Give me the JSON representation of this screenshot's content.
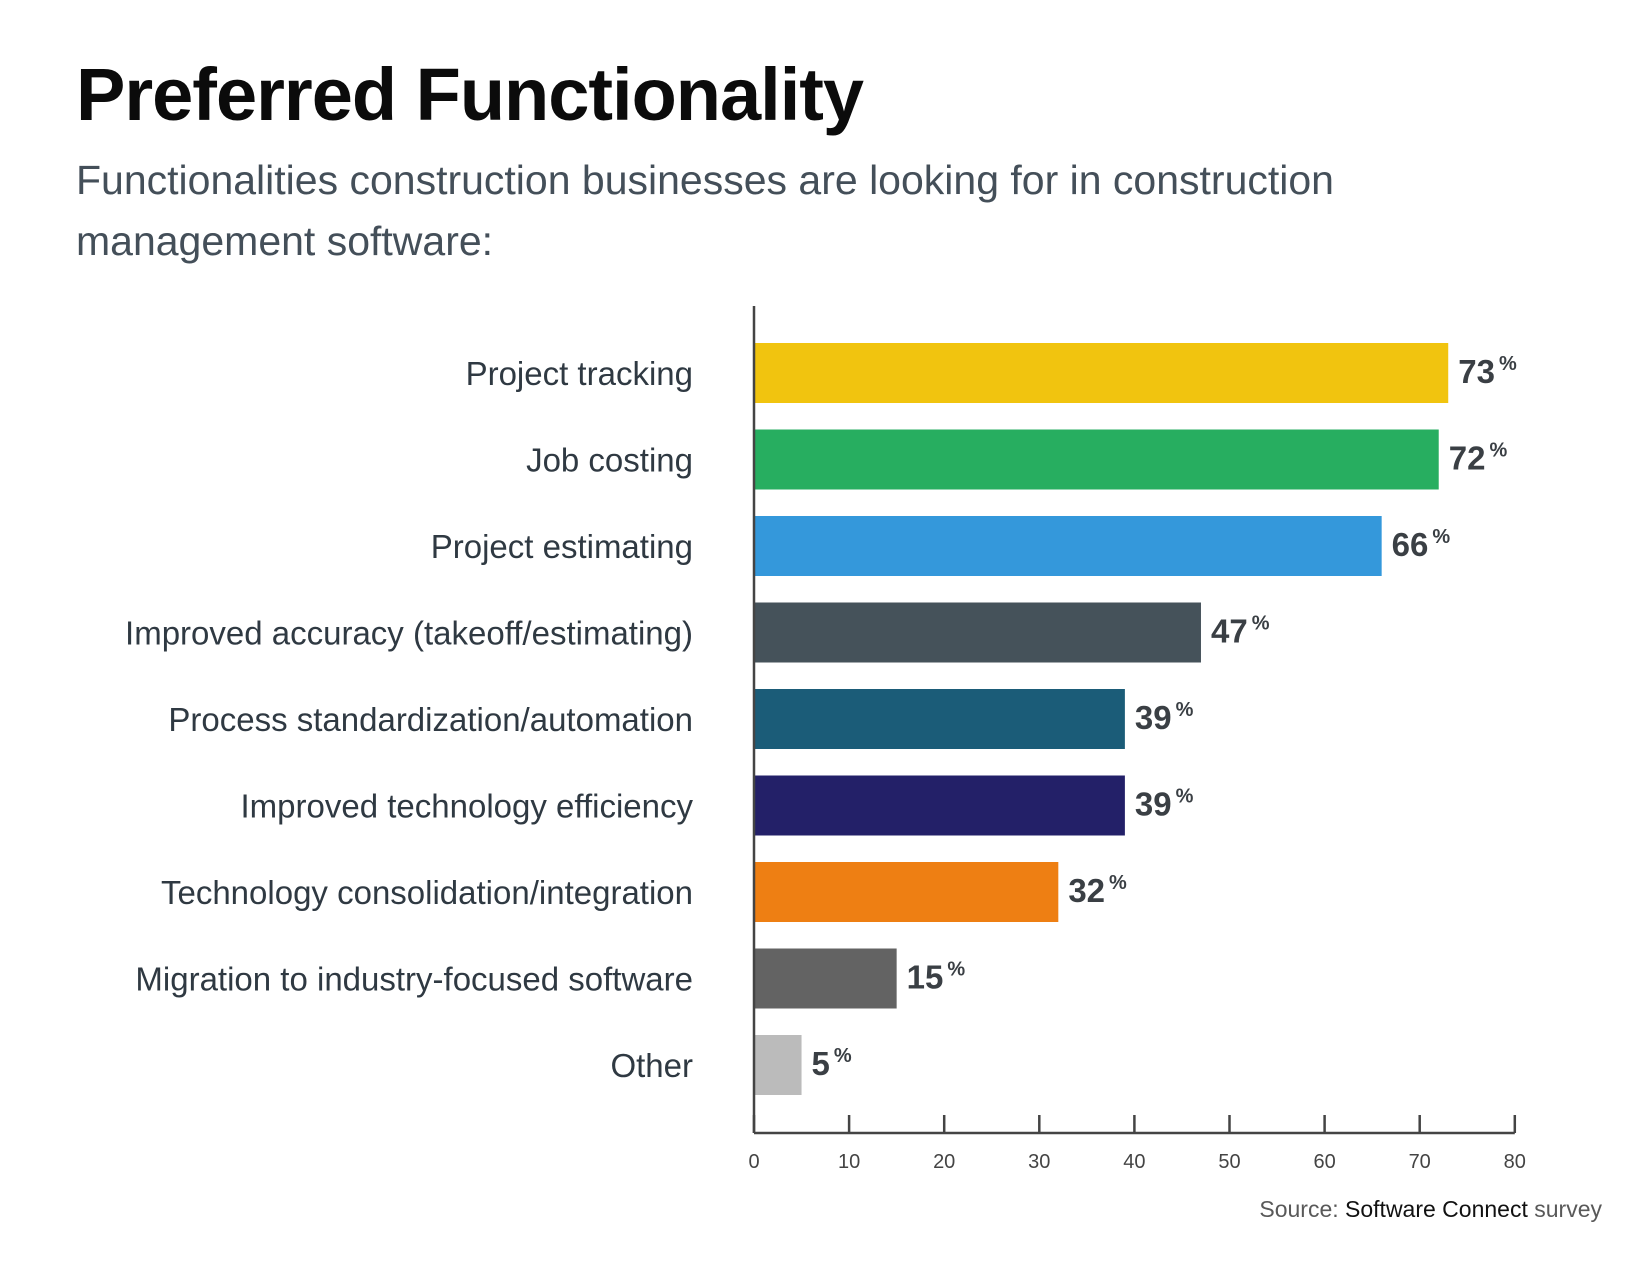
{
  "title": "Preferred Functionality",
  "subtitle": "Functionalities construction businesses are looking for in construction management software:",
  "source": {
    "prefix": "Source:",
    "org": "Software Connect",
    "suffix": "survey"
  },
  "chart_data": {
    "type": "bar",
    "orientation": "horizontal",
    "title": "Preferred Functionality",
    "subtitle": "Functionalities construction businesses are looking for in construction management software:",
    "categories": [
      "Project tracking",
      "Job costing",
      "Project estimating",
      "Improved accuracy (takeoff/estimating)",
      "Process standardization/automation",
      "Improved technology efficiency",
      "Technology consolidation/integration",
      "Migration to industry-focused software",
      "Other"
    ],
    "values": [
      73,
      72,
      66,
      47,
      39,
      39,
      32,
      15,
      5
    ],
    "value_suffix": "%",
    "colors": [
      "#F1C40F",
      "#27AE60",
      "#3498DB",
      "#45525A",
      "#1B5C78",
      "#232068",
      "#EE7F13",
      "#636363",
      "#BBBBBB"
    ],
    "xlim": [
      0,
      80
    ],
    "xticks": [
      0,
      10,
      20,
      30,
      40,
      50,
      60,
      70,
      80
    ],
    "grid": false,
    "legend": "none"
  }
}
